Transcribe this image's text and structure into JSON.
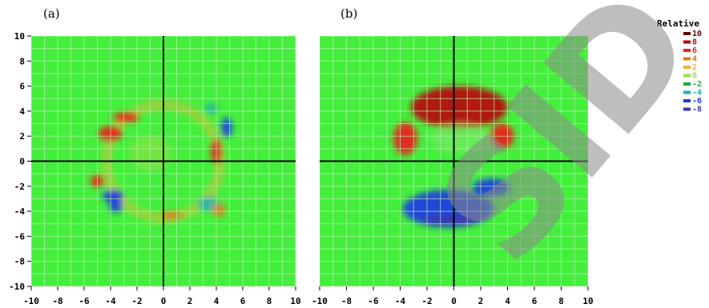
{
  "chart_data": [
    {
      "type": "heatmap",
      "panel": "(a)",
      "x_ticks": [
        "-10",
        "-8",
        "-6",
        "-4",
        "-2",
        "0",
        "2",
        "4",
        "6",
        "8",
        "10"
      ],
      "y_ticks": [
        "10",
        "8",
        "6",
        "4",
        "2",
        "0",
        "-2",
        "-4",
        "-6",
        "-8",
        "-10"
      ],
      "xlim": [
        -10,
        10
      ],
      "ylim": [
        -10,
        10
      ],
      "grid": true,
      "background_value": 0,
      "features": [
        {
          "shape": "ring",
          "cx": 0,
          "cy": 0,
          "r": 4.3,
          "width": 0.7,
          "value": 2.5
        },
        {
          "shape": "blob",
          "x": -4.0,
          "y": 2.2,
          "rx": 0.9,
          "ry": 0.6,
          "value": 6
        },
        {
          "shape": "blob",
          "x": -2.8,
          "y": 3.5,
          "rx": 1.0,
          "ry": 0.4,
          "value": 5
        },
        {
          "shape": "blob",
          "x": -5.0,
          "y": -1.6,
          "rx": 0.5,
          "ry": 0.5,
          "value": 6
        },
        {
          "shape": "blob",
          "x": -3.8,
          "y": -2.8,
          "rx": 0.8,
          "ry": 0.5,
          "value": -6
        },
        {
          "shape": "blob",
          "x": -3.6,
          "y": -3.6,
          "rx": 0.5,
          "ry": 0.5,
          "value": -7
        },
        {
          "shape": "blob",
          "x": 4.8,
          "y": 2.7,
          "rx": 0.4,
          "ry": 0.8,
          "value": -6
        },
        {
          "shape": "blob",
          "x": 3.6,
          "y": 4.2,
          "rx": 0.5,
          "ry": 0.4,
          "value": -4
        },
        {
          "shape": "blob",
          "x": 4.0,
          "y": 0.8,
          "rx": 0.4,
          "ry": 1.0,
          "value": 5
        },
        {
          "shape": "blob",
          "x": 3.4,
          "y": -3.4,
          "rx": 0.8,
          "ry": 0.6,
          "value": -5
        },
        {
          "shape": "blob",
          "x": 4.2,
          "y": -3.9,
          "rx": 0.5,
          "ry": 0.5,
          "value": 4
        },
        {
          "shape": "blob",
          "x": 0.6,
          "y": -4.3,
          "rx": 0.8,
          "ry": 0.3,
          "value": 4
        },
        {
          "shape": "blob",
          "x": -1.0,
          "y": 0.6,
          "rx": 1.6,
          "ry": 1.4,
          "value": -1
        }
      ]
    },
    {
      "type": "heatmap",
      "panel": "(b)",
      "x_ticks": [
        "-10",
        "-8",
        "-6",
        "-4",
        "-2",
        "0",
        "2",
        "4",
        "6",
        "8",
        "10"
      ],
      "y_ticks": [],
      "xlim": [
        -10,
        10
      ],
      "ylim": [
        -10,
        10
      ],
      "grid": true,
      "background_value": 0,
      "features": [
        {
          "shape": "blob",
          "x": 0.4,
          "y": 4.3,
          "rx": 3.6,
          "ry": 1.7,
          "value": 7
        },
        {
          "shape": "blob",
          "x": -3.6,
          "y": 1.8,
          "rx": 0.9,
          "ry": 1.3,
          "value": 6
        },
        {
          "shape": "blob",
          "x": 3.6,
          "y": 2.0,
          "rx": 0.9,
          "ry": 1.0,
          "value": 6
        },
        {
          "shape": "blob",
          "x": -0.4,
          "y": -3.8,
          "rx": 3.4,
          "ry": 1.5,
          "value": -7
        },
        {
          "shape": "blob",
          "x": 2.8,
          "y": -2.1,
          "rx": 1.4,
          "ry": 0.7,
          "value": -6
        },
        {
          "shape": "blob",
          "x": -0.2,
          "y": -4.7,
          "rx": 2.2,
          "ry": 0.4,
          "value": -10
        },
        {
          "shape": "blob",
          "x": 0.5,
          "y": 1.8,
          "rx": 2.2,
          "ry": 1.2,
          "value": 0.5
        }
      ]
    }
  ],
  "panels": [
    {
      "label": "(a)"
    },
    {
      "label": "(b)"
    }
  ],
  "legend": {
    "title": "Relative",
    "items": [
      {
        "label": "10",
        "color": "#5c0a0a"
      },
      {
        "label": "8",
        "color": "#b50d0d"
      },
      {
        "label": "6",
        "color": "#e8231a"
      },
      {
        "label": "4",
        "color": "#e8761a"
      },
      {
        "label": "2",
        "color": "#e6b83c"
      },
      {
        "label": "0",
        "color": "#93e04a"
      },
      {
        "label": "-2",
        "color": "#1fa83a"
      },
      {
        "label": "-4",
        "color": "#1ab4a8"
      },
      {
        "label": "-6",
        "color": "#1a3ee0"
      },
      {
        "label": "-8",
        "color": "#3b3aa8"
      }
    ]
  },
  "colors": {
    "background_field": "#44ef3c",
    "gridline": "#b8f0b0",
    "axis": "#000000"
  },
  "watermark": {
    "text": "SID"
  }
}
